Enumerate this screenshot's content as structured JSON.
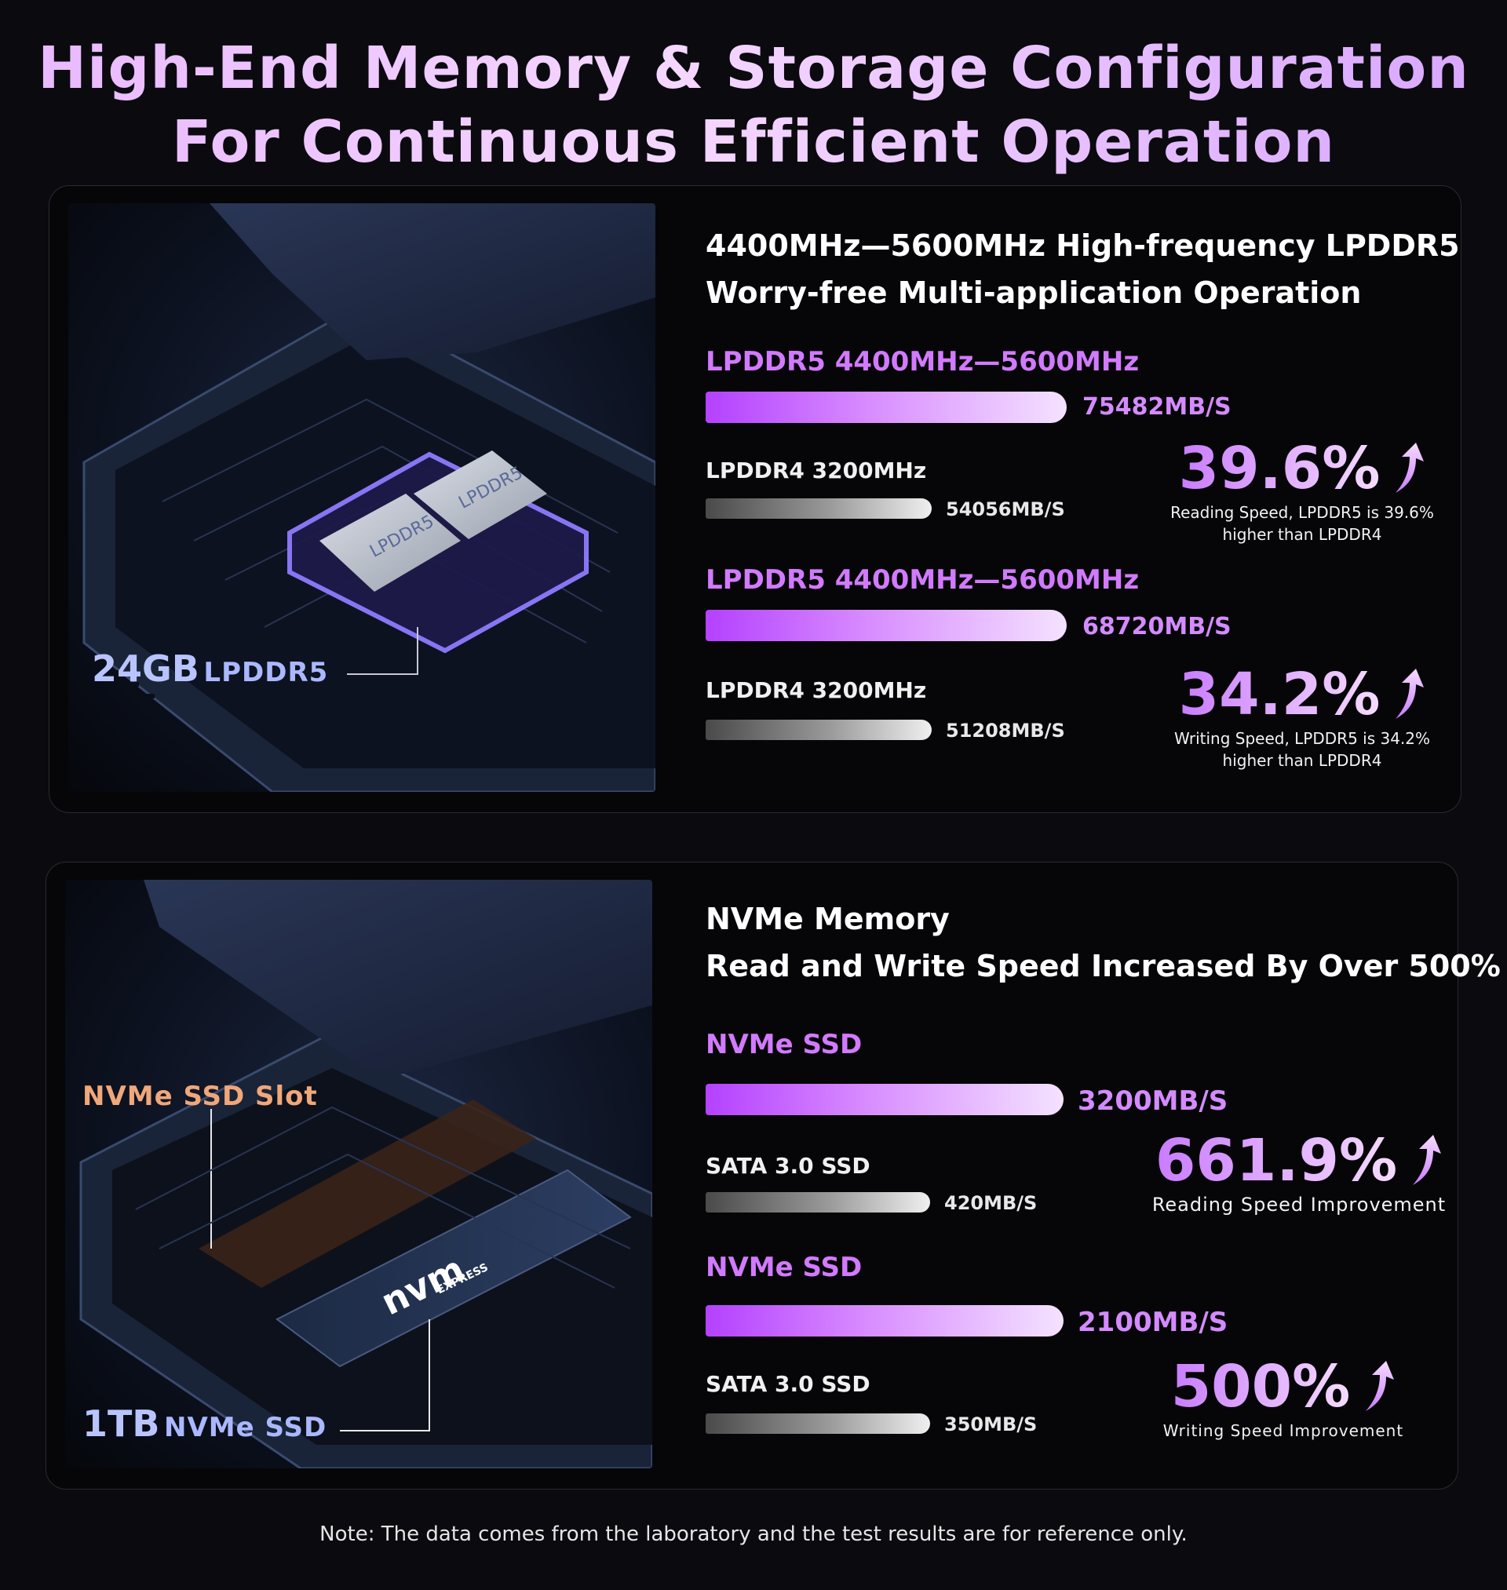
{
  "headline": {
    "line1": "High-End Memory & Storage Configuration",
    "line2": "For Continuous Efficient Operation"
  },
  "memory_panel": {
    "title_line1": "4400MHz—5600MHz High-frequency LPDDR5",
    "title_line2": "Worry-free Multi-application Operation",
    "photo": {
      "label_size": "24GB",
      "label_type": "LPDDR5",
      "chip_text": "LPDDR5"
    },
    "reading": {
      "main_label": "LPDDR5 4400MHz—5600MHz",
      "main_value": "75482MB/S",
      "secondary_label": "LPDDR4 3200MHz",
      "secondary_value": "54056MB/S",
      "percent": "39.6%",
      "caption_line1": "Reading Speed, LPDDR5 is 39.6%",
      "caption_line2": "higher than LPDDR4"
    },
    "writing": {
      "main_label": "LPDDR5 4400MHz—5600MHz",
      "main_value": "68720MB/S",
      "secondary_label": "LPDDR4 3200MHz",
      "secondary_value": "51208MB/S",
      "percent": "34.2%",
      "caption_line1": "Writing Speed, LPDDR5 is 34.2%",
      "caption_line2": "higher than LPDDR4"
    }
  },
  "ssd_panel": {
    "title_line1": "NVMe Memory",
    "title_line2": "Read and Write Speed Increased By Over 500%",
    "photo": {
      "slot_label": "NVMe SSD Slot",
      "label_size": "1TB",
      "label_type": "NVMe SSD",
      "logo_text": "nvm",
      "logo_subtext": "EXPRESS"
    },
    "reading": {
      "main_label": "NVMe SSD",
      "main_value": "3200MB/S",
      "secondary_label": "SATA 3.0 SSD",
      "secondary_value": "420MB/S",
      "percent": "661.9%",
      "caption_line1": "Reading Speed Improvement"
    },
    "writing": {
      "main_label": "NVMe SSD",
      "main_value": "2100MB/S",
      "secondary_label": "SATA 3.0 SSD",
      "secondary_value": "350MB/S",
      "percent": "500%",
      "caption_line1": "Writing Speed Improvement"
    }
  },
  "note": "Note: The data comes from the laboratory and the test results are for reference only.",
  "colors": {
    "accent_purple": "#c45cff",
    "bar_gray": "#9a9a9a",
    "slot_label_orange": "#f0a77a"
  },
  "icons": [
    "up-arrow-icon"
  ]
}
